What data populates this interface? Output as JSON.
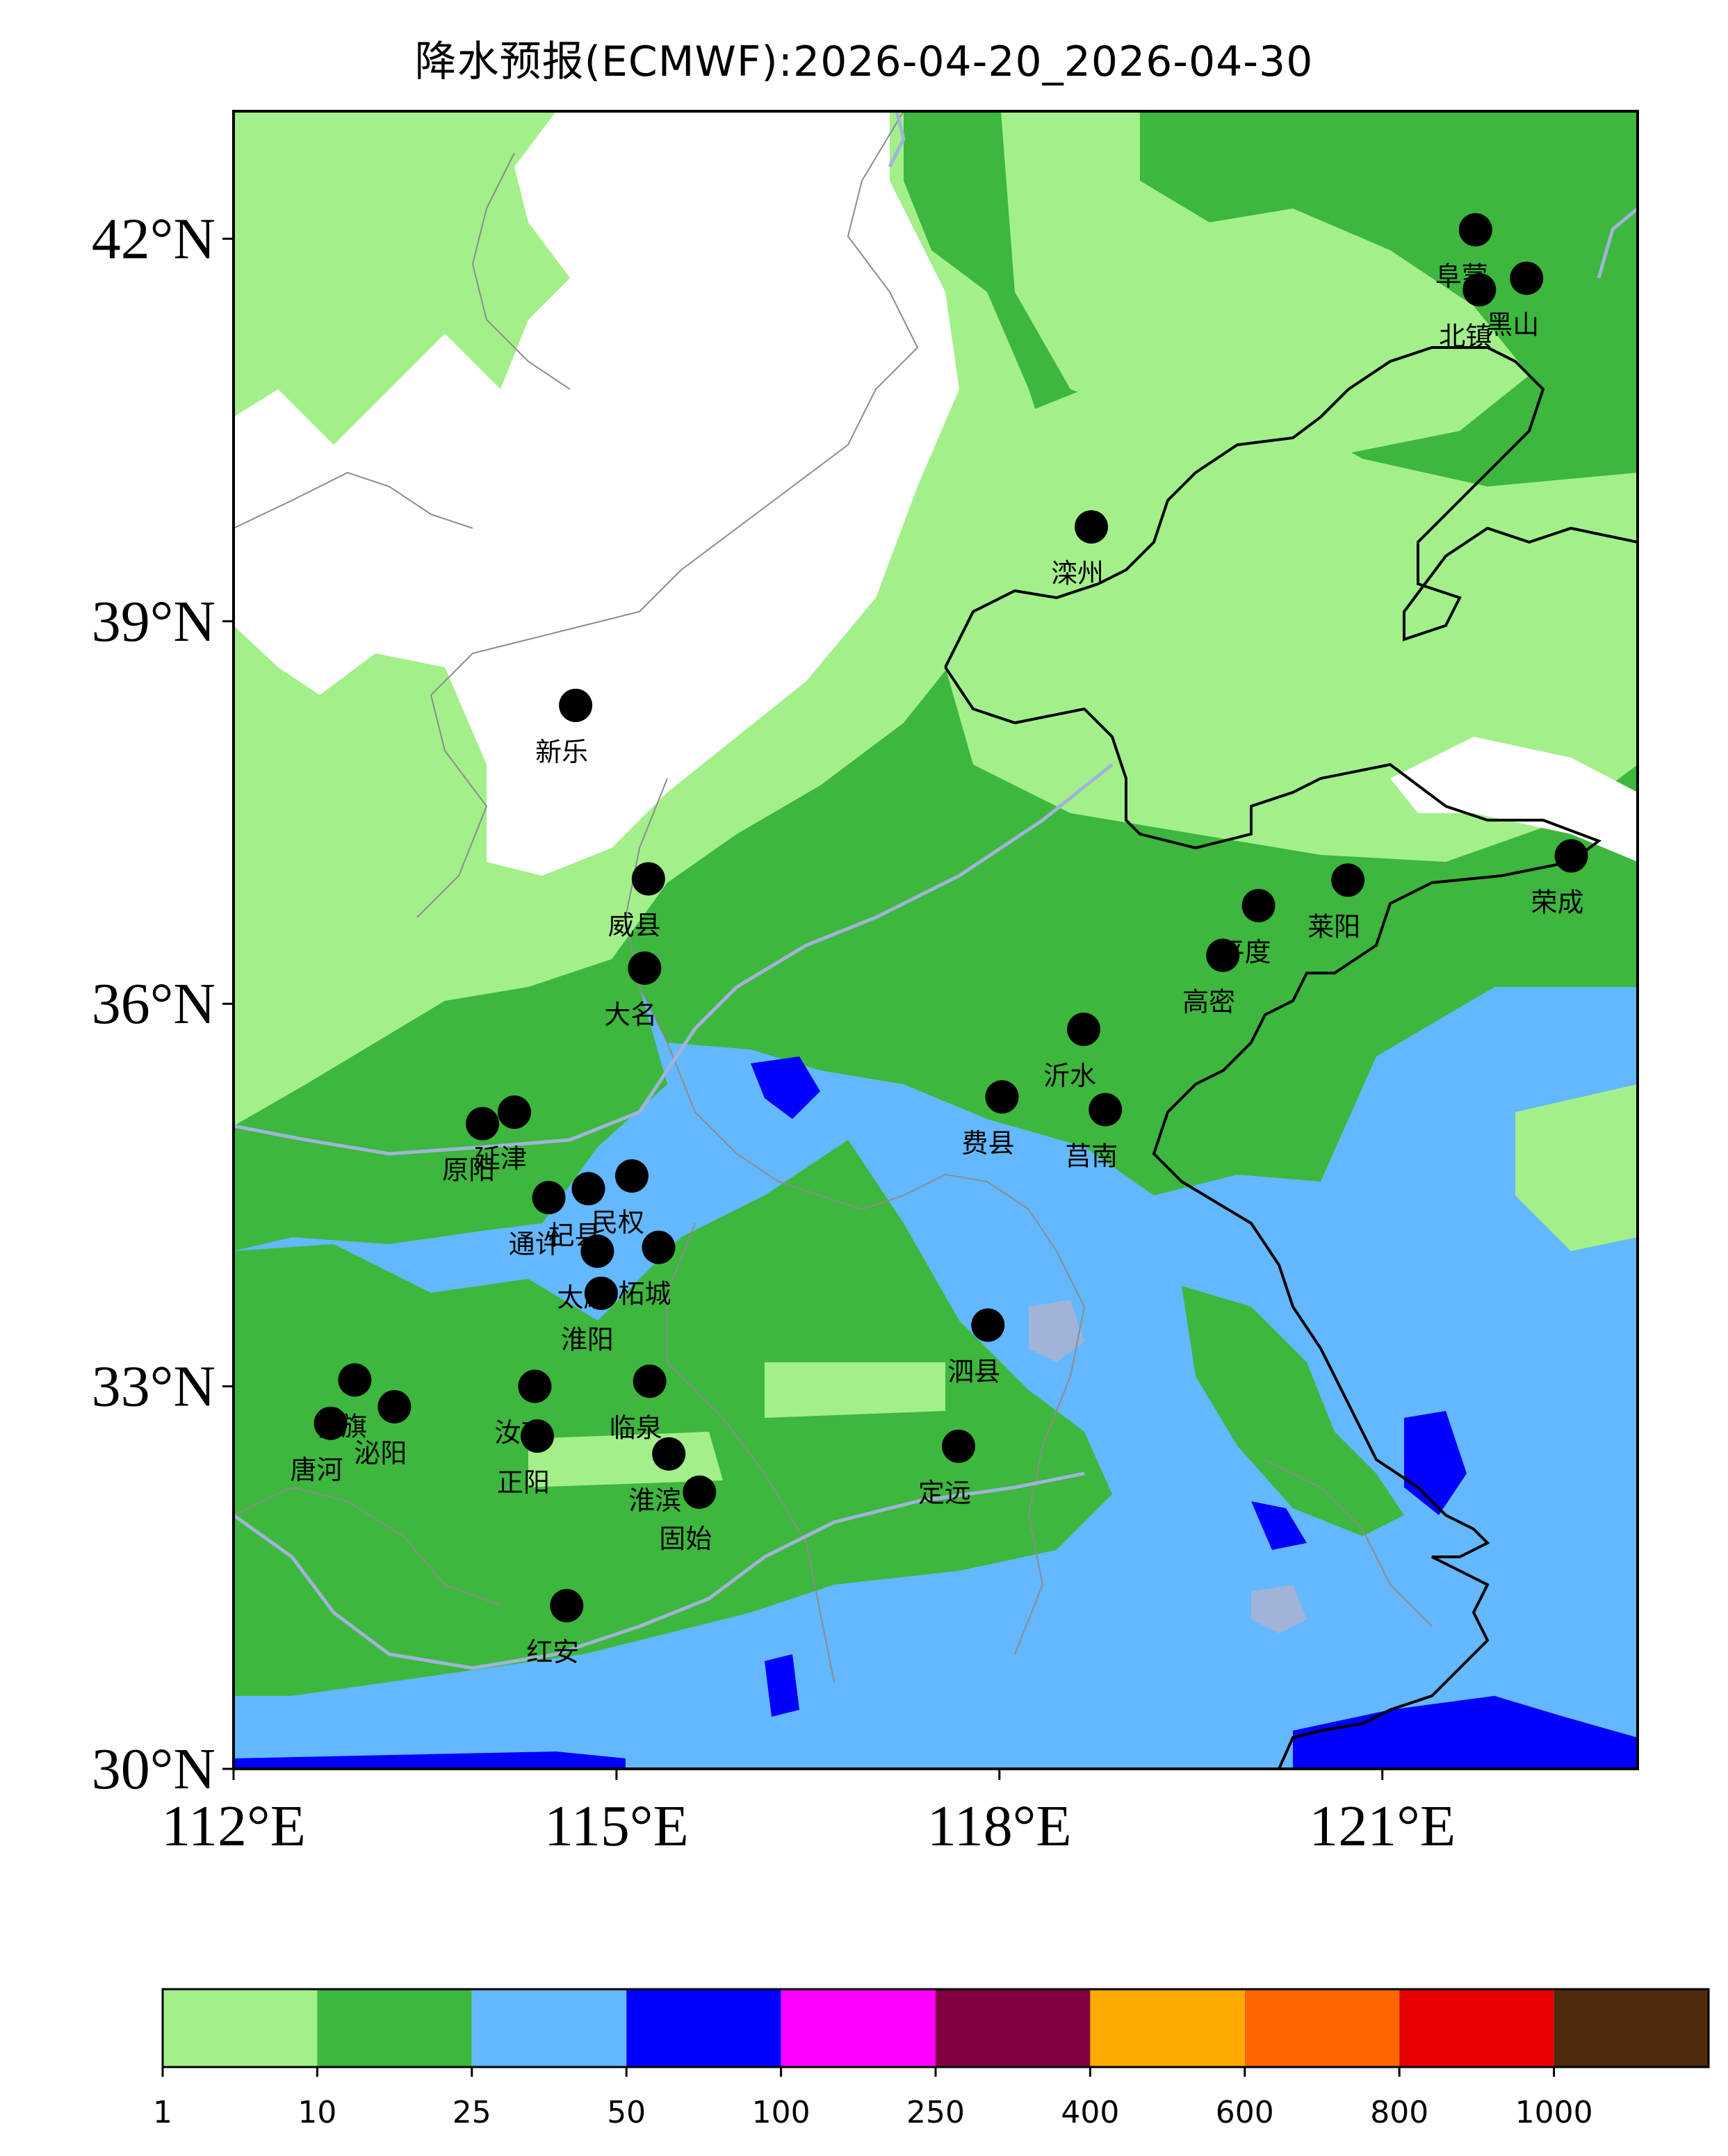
{
  "title": "降水预报(ECMWF):2026-04-20_2026-04-30",
  "axes": {
    "lon_ticks": [
      "112°E",
      "115°E",
      "118°E",
      "121°E"
    ],
    "lat_ticks": [
      "30°N",
      "33°N",
      "36°N",
      "39°N",
      "42°N"
    ],
    "lon_range": [
      112,
      123
    ],
    "lat_range": [
      30,
      43
    ]
  },
  "colors": {
    "level_1": "#a3f08a",
    "level_10": "#3db73d",
    "level_25": "#63b8ff",
    "level_50": "#0000ff",
    "level_100": "#ff00ff",
    "level_250": "#800040",
    "level_400": "#ffaa00",
    "level_600": "#ff6600",
    "level_800": "#e60000",
    "level_1000": "#4d2a0c",
    "border": "#8c8c8c",
    "river": "#a0b4d8",
    "coast": "#000000"
  },
  "colorbar": {
    "labels": [
      "1",
      "10",
      "25",
      "50",
      "100",
      "250",
      "400",
      "600",
      "800",
      "1000"
    ]
  },
  "cities": [
    {
      "name": "阜蒙",
      "lon": 121.73,
      "lat": 42.07
    },
    {
      "name": "黑山",
      "lon": 122.13,
      "lat": 41.69
    },
    {
      "name": "北镇",
      "lon": 121.76,
      "lat": 41.6
    },
    {
      "name": "滦州",
      "lon": 118.72,
      "lat": 39.74
    },
    {
      "name": "新乐",
      "lon": 114.68,
      "lat": 38.34
    },
    {
      "name": "威县",
      "lon": 115.25,
      "lat": 36.98
    },
    {
      "name": "大名",
      "lon": 115.22,
      "lat": 36.28
    },
    {
      "name": "荣成",
      "lon": 122.48,
      "lat": 37.16
    },
    {
      "name": "莱阳",
      "lon": 120.73,
      "lat": 36.97
    },
    {
      "name": "平度",
      "lon": 120.03,
      "lat": 36.77
    },
    {
      "name": "高密",
      "lon": 119.75,
      "lat": 36.38
    },
    {
      "name": "沂水",
      "lon": 118.66,
      "lat": 35.8
    },
    {
      "name": "费县",
      "lon": 118.02,
      "lat": 35.27
    },
    {
      "name": "莒南",
      "lon": 118.83,
      "lat": 35.17
    },
    {
      "name": "延津",
      "lon": 114.2,
      "lat": 35.15
    },
    {
      "name": "原阳",
      "lon": 113.95,
      "lat": 35.06
    },
    {
      "name": "民权",
      "lon": 115.12,
      "lat": 34.65
    },
    {
      "name": "杞县",
      "lon": 114.78,
      "lat": 34.55
    },
    {
      "name": "通许",
      "lon": 114.47,
      "lat": 34.48
    },
    {
      "name": "柘城",
      "lon": 115.33,
      "lat": 34.09
    },
    {
      "name": "太康",
      "lon": 114.85,
      "lat": 34.06
    },
    {
      "name": "淮阳",
      "lon": 114.88,
      "lat": 33.73
    },
    {
      "name": "泗县",
      "lon": 117.91,
      "lat": 33.48
    },
    {
      "name": "汝南",
      "lon": 114.36,
      "lat": 33.0
    },
    {
      "name": "临泉",
      "lon": 115.26,
      "lat": 33.04
    },
    {
      "name": "社旗",
      "lon": 112.95,
      "lat": 33.05
    },
    {
      "name": "泌阳",
      "lon": 113.26,
      "lat": 32.84
    },
    {
      "name": "唐河",
      "lon": 112.76,
      "lat": 32.71
    },
    {
      "name": "正阳",
      "lon": 114.38,
      "lat": 32.61
    },
    {
      "name": "淮滨",
      "lon": 115.41,
      "lat": 32.47
    },
    {
      "name": "固始",
      "lon": 115.65,
      "lat": 32.17
    },
    {
      "name": "定远",
      "lon": 117.68,
      "lat": 32.53
    },
    {
      "name": "红安",
      "lon": 114.61,
      "lat": 31.28
    }
  ]
}
